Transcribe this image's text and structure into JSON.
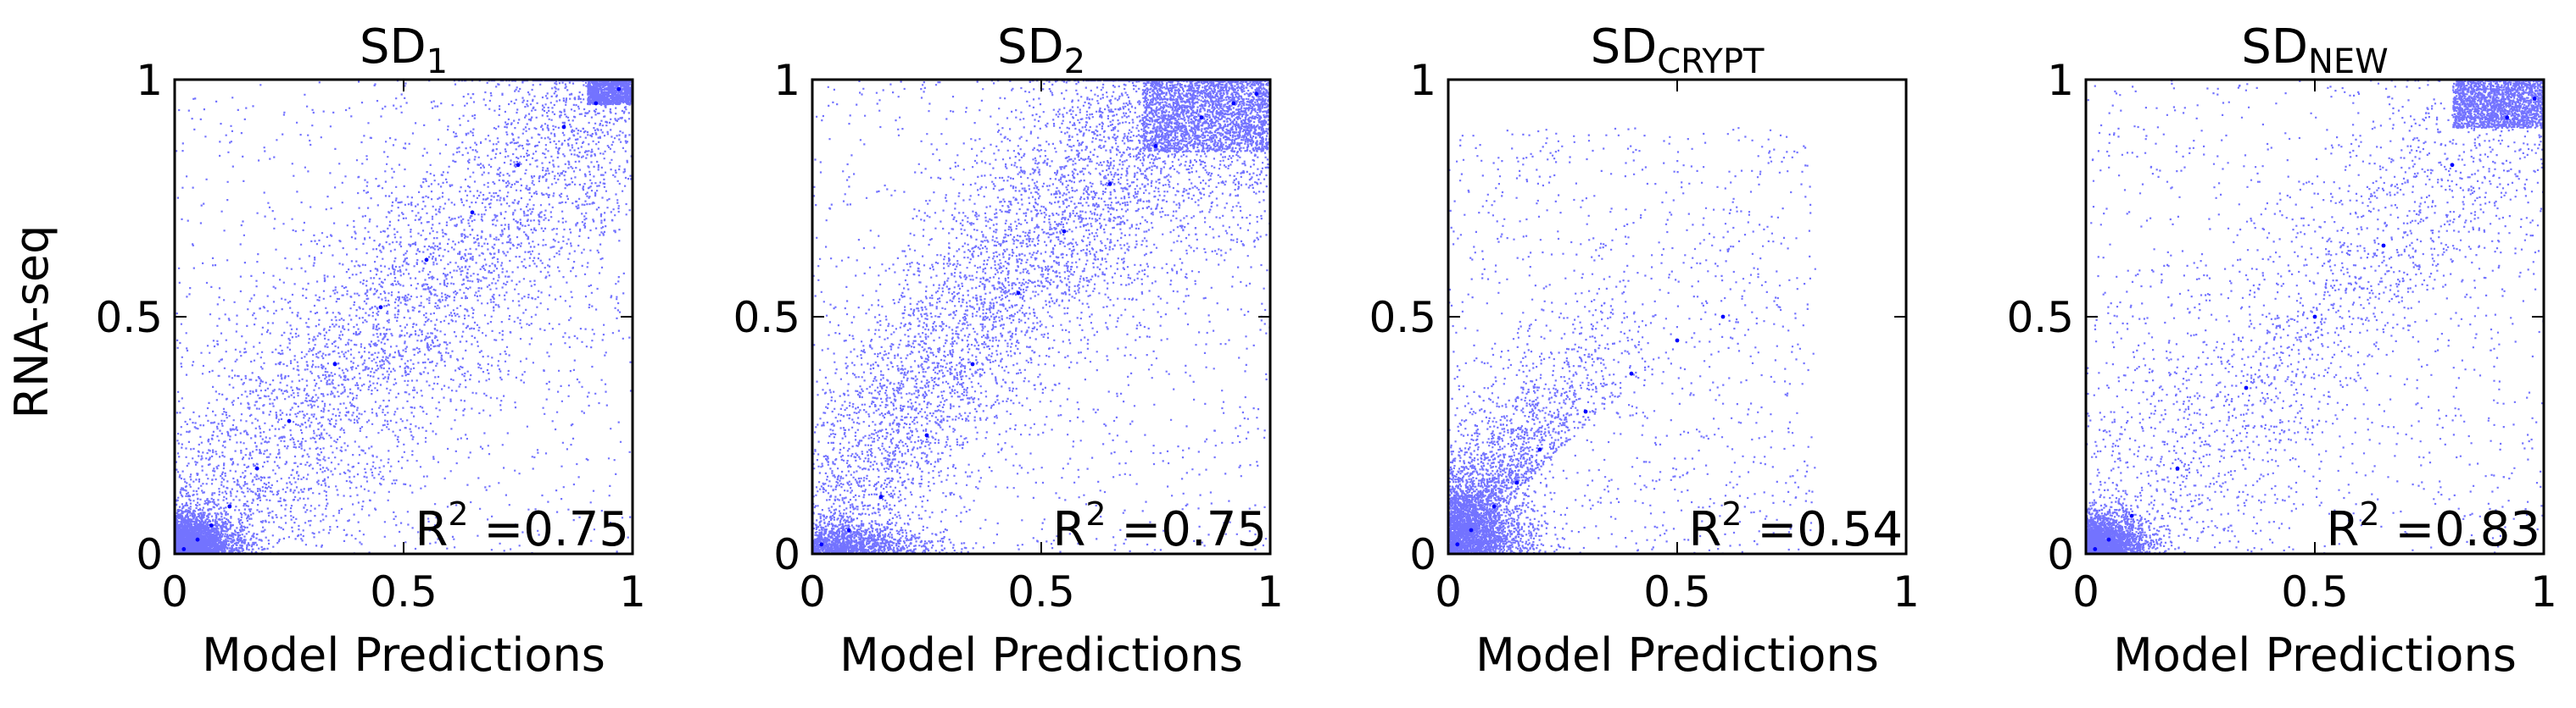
{
  "figure": {
    "ylabel": "RNA-seq",
    "xlabel": "Model Predictions"
  },
  "colors": {
    "points": "#0000ff",
    "axes": "#000000",
    "background": "#ffffff"
  },
  "chart_data": [
    {
      "type": "scatter",
      "title": "SD",
      "title_subscript": "1",
      "xlabel": "Model Predictions",
      "ylabel": "RNA-seq",
      "xlim": [
        0,
        1
      ],
      "ylim": [
        0,
        1
      ],
      "x_ticks": [
        "0",
        "0.5",
        "1"
      ],
      "y_ticks": [
        "0",
        "0.5",
        "1"
      ],
      "annotation": {
        "base": "R",
        "superscript": "2",
        "text": "=0.75"
      },
      "r_squared": 0.75,
      "grid": false,
      "point_density": "very dense; concentrated near (0,0) and (1,1) along diagonal",
      "series": [
        {
          "x": [
            0.02,
            0.05,
            0.08,
            0.12,
            0.18,
            0.25,
            0.35,
            0.45,
            0.55,
            0.65,
            0.75,
            0.85,
            0.92,
            0.97
          ],
          "y": [
            0.01,
            0.03,
            0.06,
            0.1,
            0.18,
            0.28,
            0.4,
            0.52,
            0.62,
            0.72,
            0.82,
            0.9,
            0.95,
            0.98
          ]
        }
      ]
    },
    {
      "type": "scatter",
      "title": "SD",
      "title_subscript": "2",
      "xlabel": "Model Predictions",
      "ylabel": "",
      "xlim": [
        0,
        1
      ],
      "ylim": [
        0,
        1
      ],
      "x_ticks": [
        "0",
        "0.5",
        "1"
      ],
      "y_ticks": [
        "0",
        "0.5",
        "1"
      ],
      "annotation": {
        "base": "R",
        "superscript": "2",
        "text": "=0.75"
      },
      "r_squared": 0.75,
      "grid": false,
      "point_density": "very dense; broad diagonal band, dense near (1,1)",
      "series": [
        {
          "x": [
            0.02,
            0.08,
            0.15,
            0.25,
            0.35,
            0.45,
            0.55,
            0.65,
            0.75,
            0.85,
            0.92,
            0.97
          ],
          "y": [
            0.02,
            0.05,
            0.12,
            0.25,
            0.4,
            0.55,
            0.68,
            0.78,
            0.86,
            0.92,
            0.95,
            0.97
          ]
        }
      ]
    },
    {
      "type": "scatter",
      "title": "SD",
      "title_subscript": "CRYPT",
      "xlabel": "Model Predictions",
      "ylabel": "",
      "xlim": [
        0,
        1
      ],
      "ylim": [
        0,
        1
      ],
      "x_ticks": [
        "0",
        "0.5",
        "1"
      ],
      "y_ticks": [
        "0",
        "0.5",
        "1"
      ],
      "annotation": {
        "base": "R",
        "superscript": "2",
        "text": "=0.54"
      },
      "r_squared": 0.54,
      "grid": false,
      "point_density": "dense cluster near origin, sparse elsewhere",
      "series": [
        {
          "x": [
            0.02,
            0.05,
            0.1,
            0.15,
            0.2,
            0.3,
            0.4,
            0.5,
            0.6
          ],
          "y": [
            0.02,
            0.05,
            0.1,
            0.15,
            0.22,
            0.3,
            0.38,
            0.45,
            0.5
          ]
        }
      ]
    },
    {
      "type": "scatter",
      "title": "SD",
      "title_subscript": "NEW",
      "xlabel": "Model Predictions",
      "ylabel": "",
      "xlim": [
        0,
        1
      ],
      "ylim": [
        0,
        1
      ],
      "x_ticks": [
        "0",
        "0.5",
        "1"
      ],
      "y_ticks": [
        "0",
        "0.5",
        "1"
      ],
      "annotation": {
        "base": "R",
        "superscript": "2",
        "text": "=0.83"
      },
      "r_squared": 0.83,
      "grid": false,
      "point_density": "dense near origin and upper-right corner, sparse diagonal",
      "series": [
        {
          "x": [
            0.02,
            0.05,
            0.1,
            0.2,
            0.35,
            0.5,
            0.65,
            0.8,
            0.92,
            0.98
          ],
          "y": [
            0.01,
            0.03,
            0.08,
            0.18,
            0.35,
            0.5,
            0.65,
            0.82,
            0.92,
            0.96
          ]
        }
      ]
    }
  ]
}
